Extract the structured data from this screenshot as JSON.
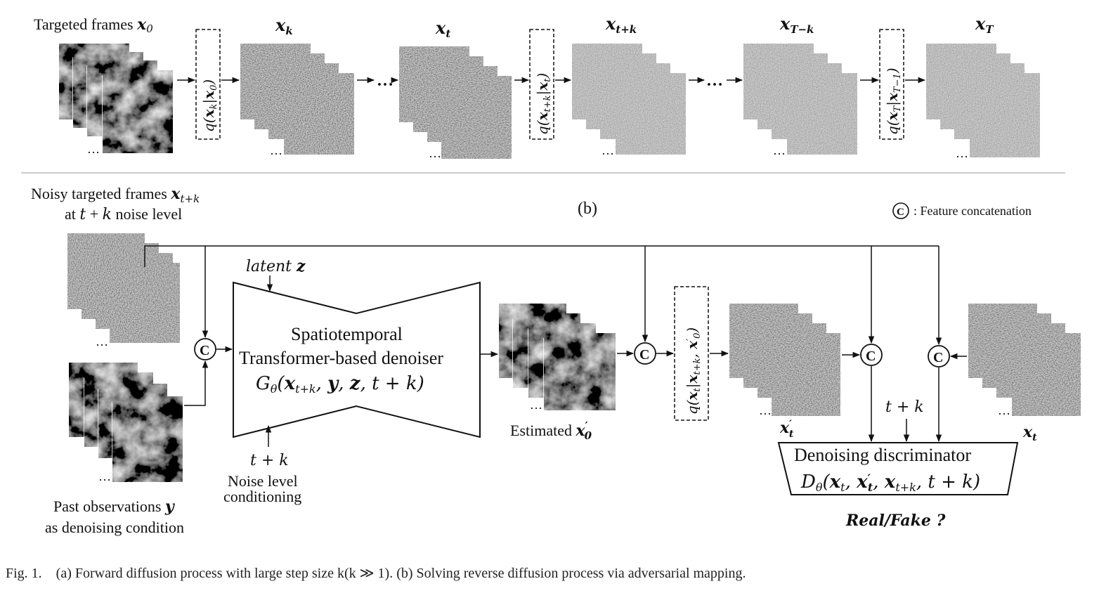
{
  "part_a": {
    "stages": [
      {
        "label": "Targeted frames x₀",
        "kind": "clean"
      },
      {
        "label": "x_k",
        "kind": "noisy1"
      },
      {
        "label": "x_t",
        "kind": "noisy1"
      },
      {
        "label": "x_{t+k}",
        "kind": "noisy2"
      },
      {
        "label": "x_{T−k}",
        "kind": "noisy2"
      },
      {
        "label": "x_T",
        "kind": "noise"
      }
    ],
    "transitions": [
      "q(x_k|x_0)",
      "q(x_{t+k}|x_t)",
      "q(x_T|x_{T−1})"
    ],
    "ellipsis": "…"
  },
  "part_b": {
    "label": "(b)",
    "legend_symbol": "C",
    "legend_text": ": Feature concatenation",
    "noisy_title_line1": "Noisy targeted frames x_{t+k}",
    "noisy_title_line2": "at t + k noise level",
    "past_obs_line1": "Past observations y",
    "past_obs_line2": "as denoising condition",
    "latent_label": "latent z",
    "denoiser_line1": "Spatiotemporal",
    "denoiser_line2": "Transformer-based denoiser",
    "denoiser_formula": "G_θ(x_{t+k}, y, z, t + k)",
    "noise_level_value": "t + k",
    "noise_level_line1": "Noise level",
    "noise_level_line2": "conditioning",
    "estimated_label": "Estimated x′₀",
    "posterior": "q(x_t|x_{t+k}, x′₀)",
    "xt_prime_label": "x′_t",
    "xt_label": "x_t",
    "disc_tk": "t + k",
    "disc_line1": "Denoising discriminator",
    "disc_formula": "D_θ(x_t, x′_t, x_{t+k}, t + k)",
    "real_fake": "Real/Fake ?"
  },
  "caption": "Fig. 1. (a) Forward diffusion process with large step size k(k ≫ 1). (b) Solving reverse diffusion process via adversarial mapping."
}
